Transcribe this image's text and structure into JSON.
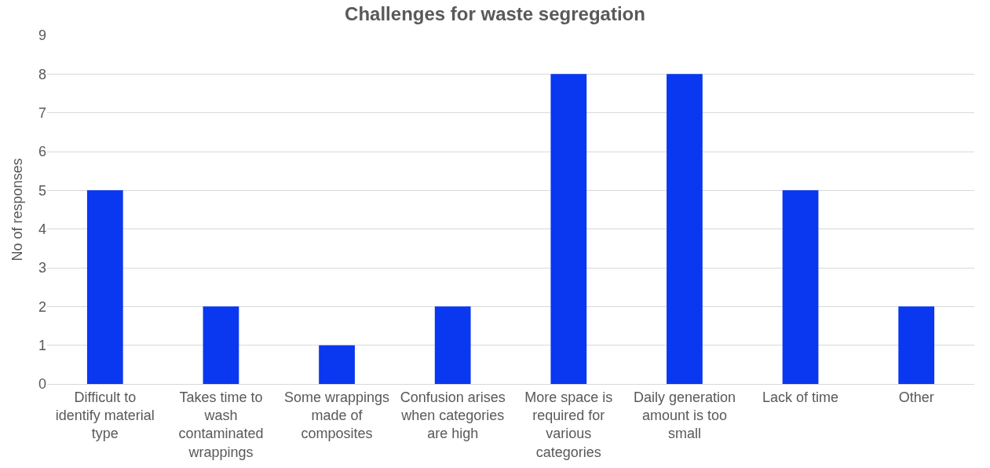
{
  "chart_data": {
    "type": "bar",
    "title": "Challenges for waste segregation",
    "ylabel": "No of responses",
    "categories": [
      "Difficult to\nidentify material\ntype",
      "Takes time to\nwash\ncontaminated\nwrappings",
      "Some wrappings\nmade of\ncomposites",
      "Confusion arises\nwhen categories\nare high",
      "More space is\nrequired for\nvarious\ncategories",
      "Daily generation\namount is too\nsmall",
      "Lack of time",
      "Other"
    ],
    "values": [
      5,
      2,
      1,
      2,
      8,
      8,
      5,
      2
    ],
    "color": "#0a37f0",
    "ylim": [
      0,
      9
    ],
    "yticks": [
      0,
      1,
      2,
      3,
      4,
      5,
      6,
      7,
      8,
      9
    ],
    "grid": "y"
  }
}
